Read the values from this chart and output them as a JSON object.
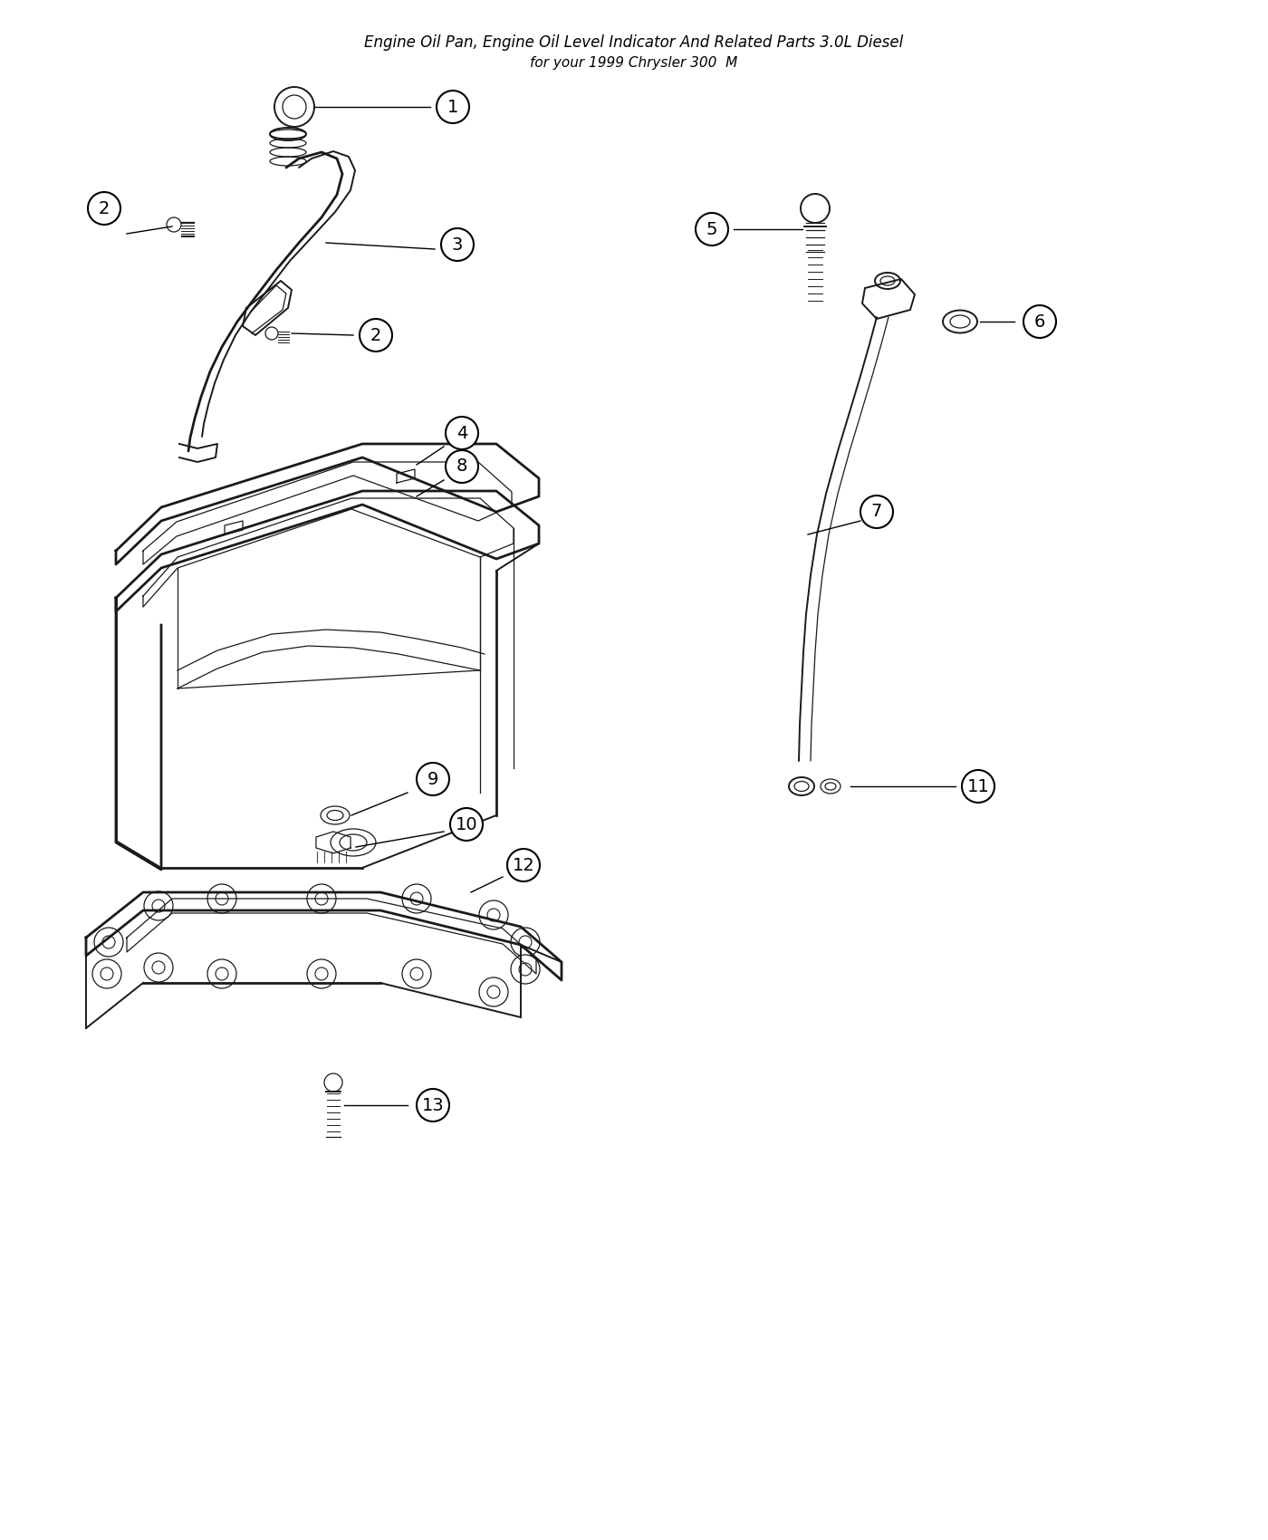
{
  "title": "Engine Oil Pan, Engine Oil Level Indicator And Related Parts 3.0L Diesel",
  "subtitle": "for your 1999 Chrysler 300  M",
  "bg": "#ffffff",
  "lc": "#1a1a1a",
  "label_circle_r": 18,
  "label_fs": 14,
  "title_fs": 12
}
